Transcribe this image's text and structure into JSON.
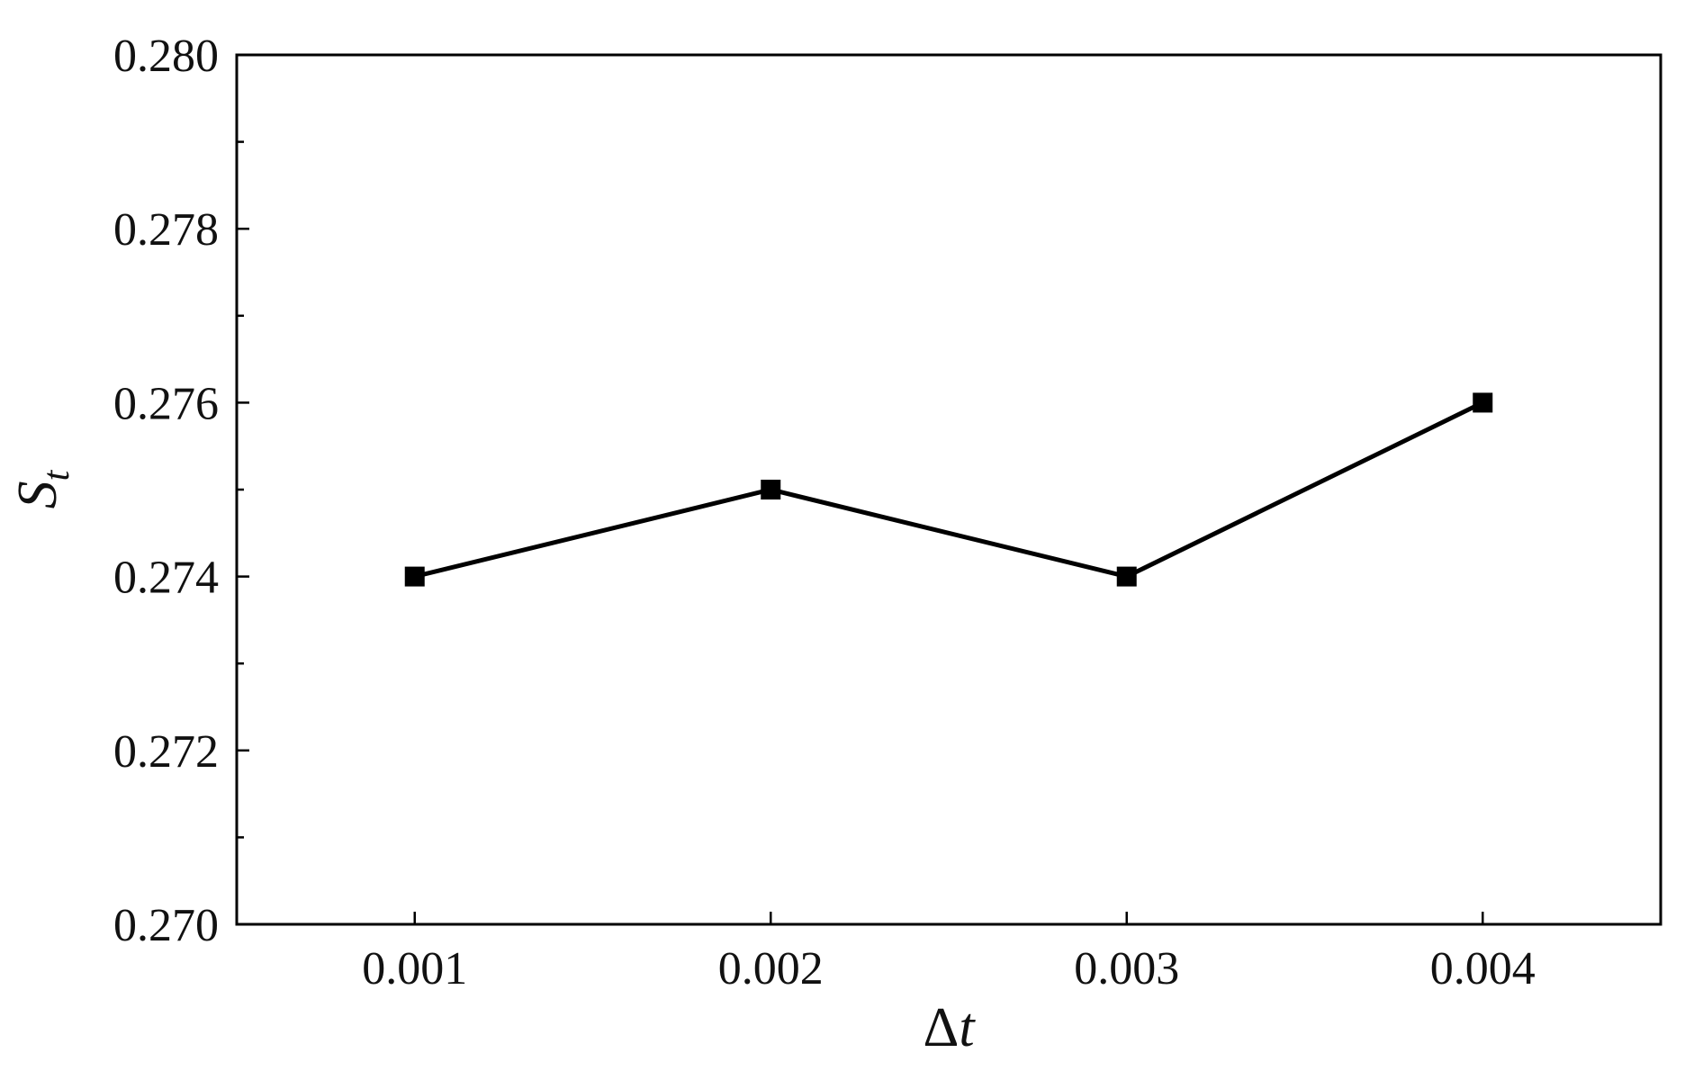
{
  "chart_data": {
    "type": "line",
    "title": "",
    "xlabel": "Δt",
    "ylabel": "S_t",
    "ylabel_main": "S",
    "ylabel_sub": "t",
    "xlabel_prefix": "Δ",
    "xlabel_var": "t",
    "x": [
      0.001,
      0.002,
      0.003,
      0.004
    ],
    "x_tick_labels": [
      "0.001",
      "0.002",
      "0.003",
      "0.004"
    ],
    "xlim": [
      0.0005,
      0.0045
    ],
    "ylim": [
      0.27,
      0.28
    ],
    "y_major_ticks": [
      0.27,
      0.272,
      0.274,
      0.276,
      0.278,
      0.28
    ],
    "y_tick_labels": [
      "0.270",
      "0.272",
      "0.274",
      "0.276",
      "0.278",
      "0.280"
    ],
    "y_minor_ticks": [
      0.271,
      0.273,
      0.275,
      0.277,
      0.279
    ],
    "grid": false,
    "legend": "none",
    "series": [
      {
        "values": [
          0.274,
          0.275,
          0.274,
          0.276
        ],
        "color": "#000000",
        "marker": "square"
      }
    ]
  }
}
